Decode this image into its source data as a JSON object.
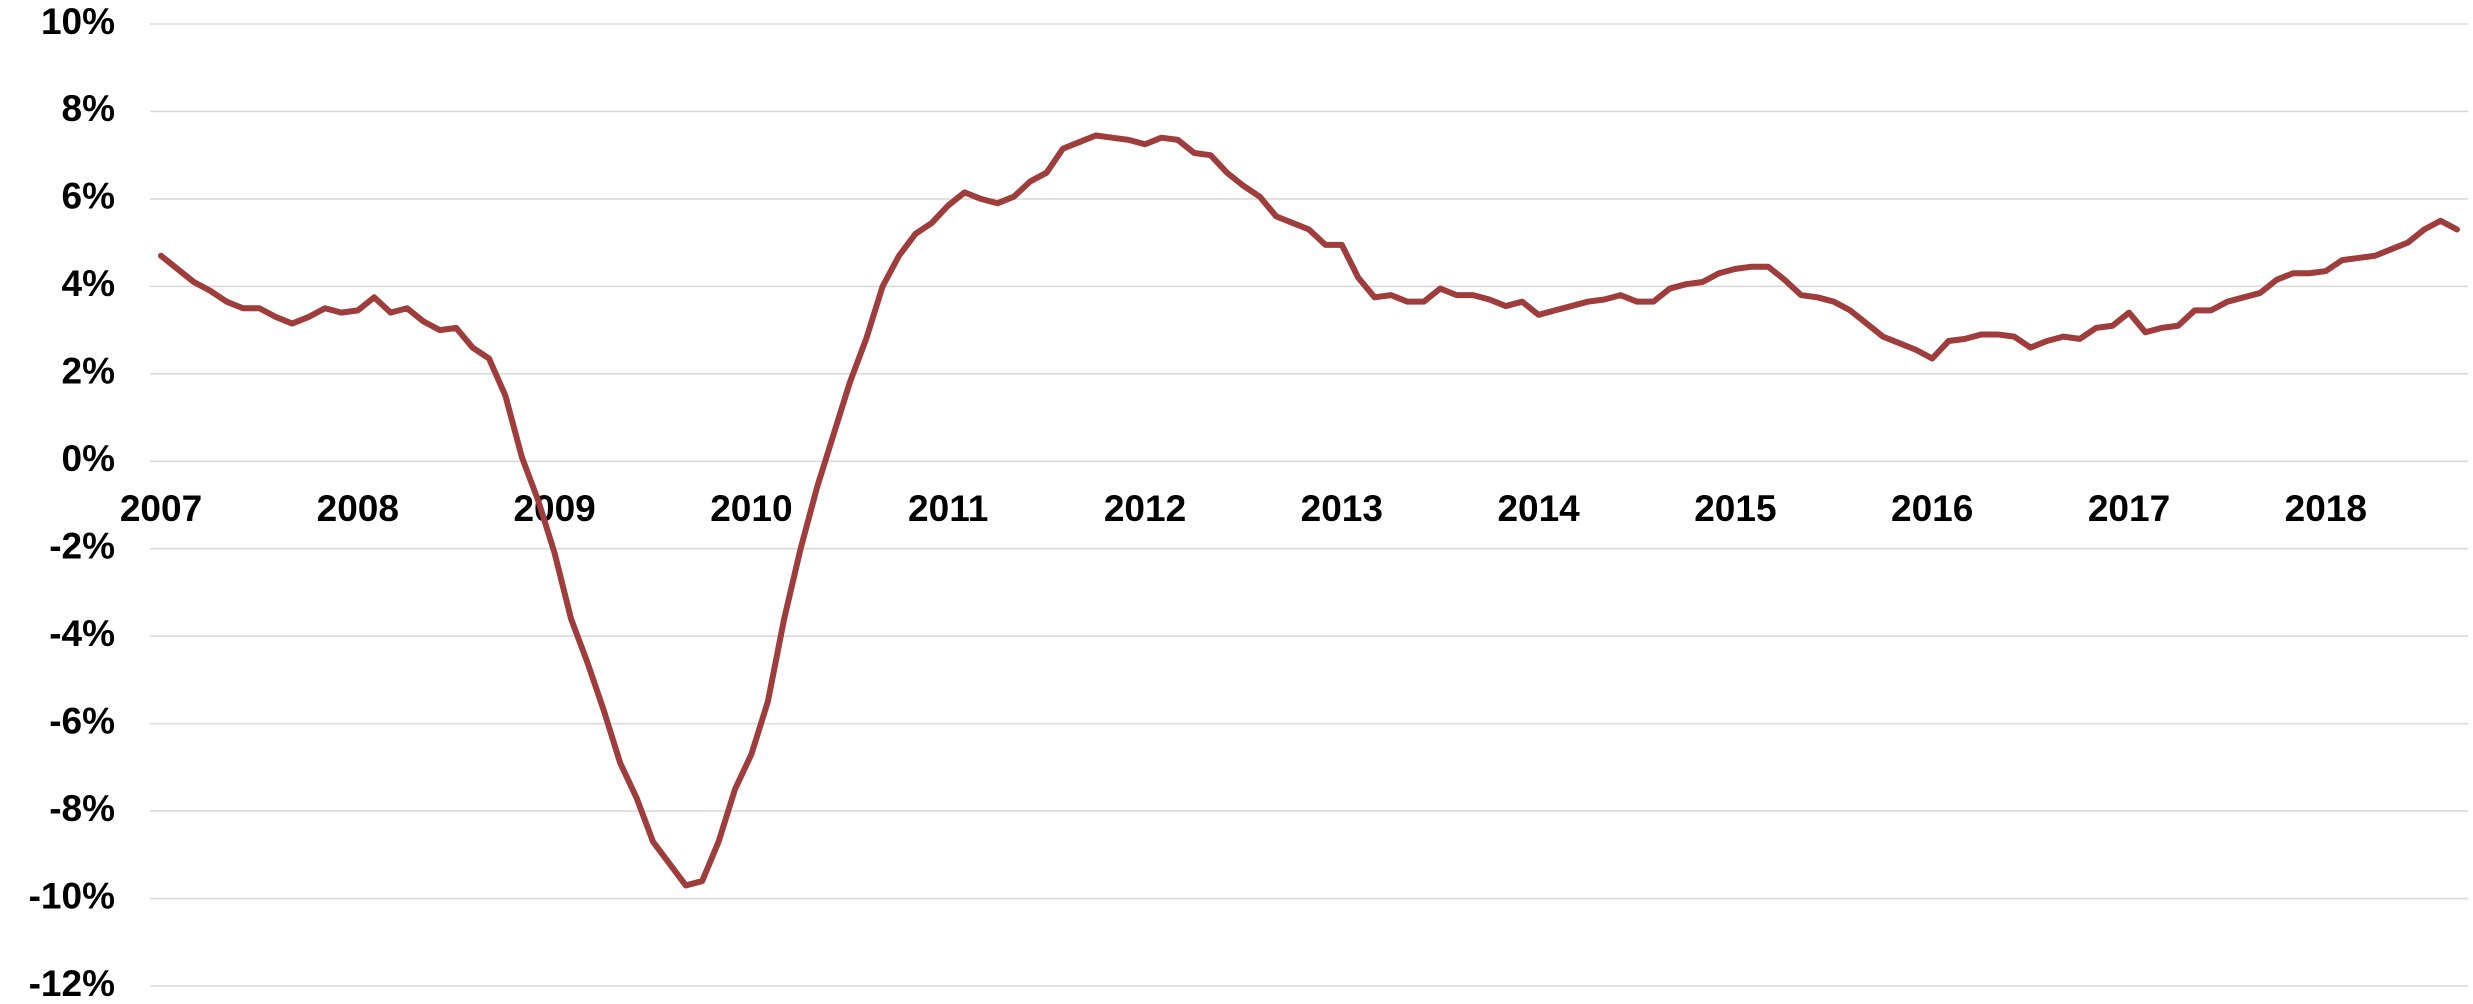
{
  "chart_data": {
    "type": "line",
    "categories": [
      "2007",
      null,
      null,
      null,
      null,
      null,
      null,
      null,
      null,
      null,
      null,
      null,
      "2008",
      null,
      null,
      null,
      null,
      null,
      null,
      null,
      null,
      null,
      null,
      null,
      "2009",
      null,
      null,
      null,
      null,
      null,
      null,
      null,
      null,
      null,
      null,
      null,
      "2010",
      null,
      null,
      null,
      null,
      null,
      null,
      null,
      null,
      null,
      null,
      null,
      "2011",
      null,
      null,
      null,
      null,
      null,
      null,
      null,
      null,
      null,
      null,
      null,
      "2012",
      null,
      null,
      null,
      null,
      null,
      null,
      null,
      null,
      null,
      null,
      null,
      "2013",
      null,
      null,
      null,
      null,
      null,
      null,
      null,
      null,
      null,
      null,
      null,
      "2014",
      null,
      null,
      null,
      null,
      null,
      null,
      null,
      null,
      null,
      null,
      null,
      "2015",
      null,
      null,
      null,
      null,
      null,
      null,
      null,
      null,
      null,
      null,
      null,
      "2016",
      null,
      null,
      null,
      null,
      null,
      null,
      null,
      null,
      null,
      null,
      null,
      "2017",
      null,
      null,
      null,
      null,
      null,
      null,
      null,
      null,
      null,
      null,
      null,
      "2018",
      null,
      null,
      null,
      null,
      null,
      null,
      null,
      null
    ],
    "values": [
      4.7,
      4.4,
      4.1,
      3.9,
      3.65,
      3.5,
      3.5,
      3.3,
      3.15,
      3.3,
      3.5,
      3.4,
      3.45,
      3.75,
      3.4,
      3.5,
      3.2,
      3.0,
      3.05,
      2.6,
      2.35,
      1.5,
      0.1,
      -0.9,
      -2.1,
      -3.6,
      -4.6,
      -5.7,
      -6.9,
      -7.7,
      -8.7,
      -9.2,
      -9.7,
      -9.6,
      -8.7,
      -7.5,
      -6.7,
      -5.5,
      -3.6,
      -2.0,
      -0.6,
      0.6,
      1.8,
      2.8,
      4.0,
      4.7,
      5.2,
      5.45,
      5.85,
      6.15,
      6.0,
      5.9,
      6.05,
      6.4,
      6.6,
      7.15,
      7.3,
      7.45,
      7.4,
      7.35,
      7.25,
      7.4,
      7.35,
      7.05,
      7.0,
      6.6,
      6.3,
      6.05,
      5.6,
      5.45,
      5.3,
      4.95,
      4.95,
      4.2,
      3.75,
      3.8,
      3.65,
      3.65,
      3.95,
      3.8,
      3.8,
      3.7,
      3.55,
      3.65,
      3.35,
      3.45,
      3.55,
      3.65,
      3.7,
      3.8,
      3.65,
      3.65,
      3.95,
      4.05,
      4.1,
      4.3,
      4.4,
      4.45,
      4.45,
      4.15,
      3.8,
      3.75,
      3.65,
      3.45,
      3.15,
      2.85,
      2.7,
      2.55,
      2.35,
      2.75,
      2.8,
      2.9,
      2.9,
      2.85,
      2.6,
      2.75,
      2.85,
      2.8,
      3.05,
      3.1,
      3.4,
      2.95,
      3.05,
      3.1,
      3.45,
      3.45,
      3.65,
      3.75,
      3.85,
      4.15,
      4.3,
      4.3,
      4.35,
      4.6,
      4.65,
      4.7,
      4.85,
      5.0,
      5.3,
      5.5,
      5.3
    ],
    "color": "#9e3d3b",
    "ylim": [
      -12,
      10
    ],
    "yticks": [
      {
        "value": -12,
        "label": "-12%"
      },
      {
        "value": -10,
        "label": "-10%"
      },
      {
        "value": -8,
        "label": "-8%"
      },
      {
        "value": -6,
        "label": "-6%"
      },
      {
        "value": -4,
        "label": "-4%"
      },
      {
        "value": -2,
        "label": "-2%"
      },
      {
        "value": 0,
        "label": "0%"
      },
      {
        "value": 2,
        "label": "2%"
      },
      {
        "value": 4,
        "label": "4%"
      },
      {
        "value": 6,
        "label": "6%"
      },
      {
        "value": 8,
        "label": "8%"
      },
      {
        "value": 10,
        "label": "10%"
      }
    ],
    "grid": true
  }
}
